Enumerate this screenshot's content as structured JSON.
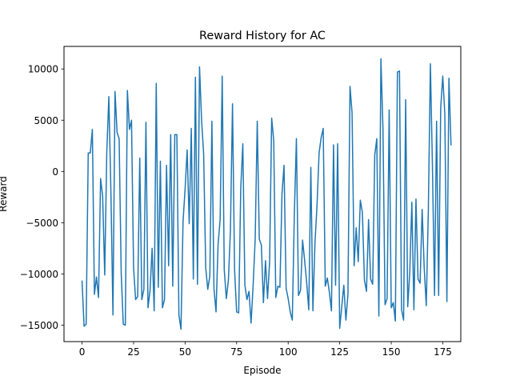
{
  "chart_data": {
    "type": "line",
    "title": "Reward History for AC",
    "xlabel": "Episode",
    "ylabel": "Reward",
    "xlim": [
      -8.75,
      183.75
    ],
    "ylim": [
      -16600,
      12200
    ],
    "xticks": [
      0,
      25,
      50,
      75,
      100,
      125,
      150,
      175
    ],
    "yticks": [
      -15000,
      -10000,
      -5000,
      0,
      5000,
      10000
    ],
    "xtick_labels": [
      "0",
      "25",
      "50",
      "75",
      "100",
      "125",
      "150",
      "175"
    ],
    "ytick_labels": [
      "−15000",
      "−10000",
      "−5000",
      "0",
      "5000",
      "10000"
    ],
    "grid": false,
    "legend": "none",
    "series": [
      {
        "color": "#1f77b4",
        "values": [
          -10700,
          -15100,
          -14900,
          1800,
          1800,
          4100,
          -12000,
          -10300,
          -12300,
          -700,
          -2400,
          -10100,
          1800,
          7300,
          -1900,
          -14000,
          7800,
          3800,
          3200,
          -9900,
          -14900,
          -15000,
          7900,
          4100,
          5000,
          -9400,
          -12500,
          -12200,
          1300,
          -12500,
          -11500,
          4800,
          -13300,
          -11600,
          -7500,
          -13600,
          8600,
          -11300,
          1000,
          -13300,
          -12500,
          600,
          -9200,
          3600,
          -11200,
          3600,
          3600,
          -14000,
          -15400,
          -4900,
          -1700,
          2100,
          -5100,
          4200,
          -10500,
          9200,
          -11000,
          10200,
          5000,
          1700,
          -9400,
          -11500,
          -10200,
          4900,
          -11400,
          -13700,
          -7100,
          -4700,
          9300,
          -9600,
          -12400,
          -10600,
          -5700,
          6600,
          -9600,
          -13700,
          -13800,
          -1600,
          2700,
          -11100,
          -12500,
          -11700,
          -14800,
          -11100,
          -6600,
          4900,
          -6600,
          -7200,
          -12800,
          -8700,
          -12400,
          -8800,
          5200,
          3000,
          -12300,
          -11200,
          -11300,
          -2200,
          600,
          -11400,
          -12400,
          -13700,
          -14500,
          -4100,
          3200,
          -12100,
          -11600,
          -6700,
          -8700,
          -10900,
          -13500,
          400,
          -13600,
          -7000,
          -3300,
          1800,
          3300,
          4200,
          -11200,
          -10400,
          -11800,
          -13600,
          2600,
          -11100,
          2700,
          -15300,
          -13200,
          -11100,
          -14500,
          -12000,
          8300,
          5700,
          -9200,
          -5500,
          -8800,
          -2800,
          -4000,
          -10600,
          -11700,
          -4700,
          -10500,
          -11000,
          1600,
          3200,
          -14100,
          11000,
          4100,
          -13000,
          -12400,
          6000,
          -13300,
          -12800,
          -14600,
          9700,
          9800,
          -13500,
          -14500,
          7000,
          -13200,
          -9800,
          -3000,
          -13500,
          -2700,
          -10500,
          -10900,
          -3700,
          -9400,
          -13100,
          -3800,
          10500,
          400,
          -12100,
          4900,
          -12100,
          6200,
          9300,
          5600,
          -12700,
          9100,
          2600
        ]
      }
    ]
  }
}
